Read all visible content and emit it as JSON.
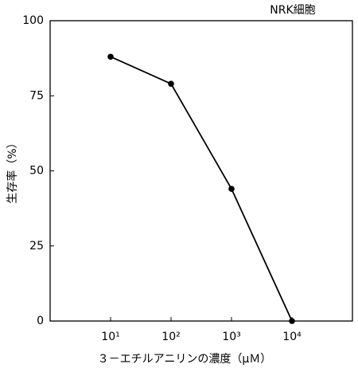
{
  "chart_data": {
    "type": "line",
    "title": "NRK細胞",
    "x_label": "３－エチルアニリンの濃度（μＭ）",
    "y_label": "生存率（%）",
    "x": [
      10,
      100,
      1000,
      10000
    ],
    "series": [
      {
        "name": null,
        "color": "#000000",
        "values": [
          88,
          79,
          44,
          0
        ]
      }
    ],
    "xscale": "log",
    "xlim": [
      1,
      100000
    ],
    "xticks": [
      {
        "value": 10,
        "label": "10¹"
      },
      {
        "value": 100,
        "label": "10²"
      },
      {
        "value": 1000,
        "label": "10³"
      },
      {
        "value": 10000,
        "label": "10⁴"
      }
    ],
    "ylim": [
      0,
      100
    ],
    "yticks": [
      0,
      25,
      50,
      75,
      100
    ],
    "grid": false
  }
}
